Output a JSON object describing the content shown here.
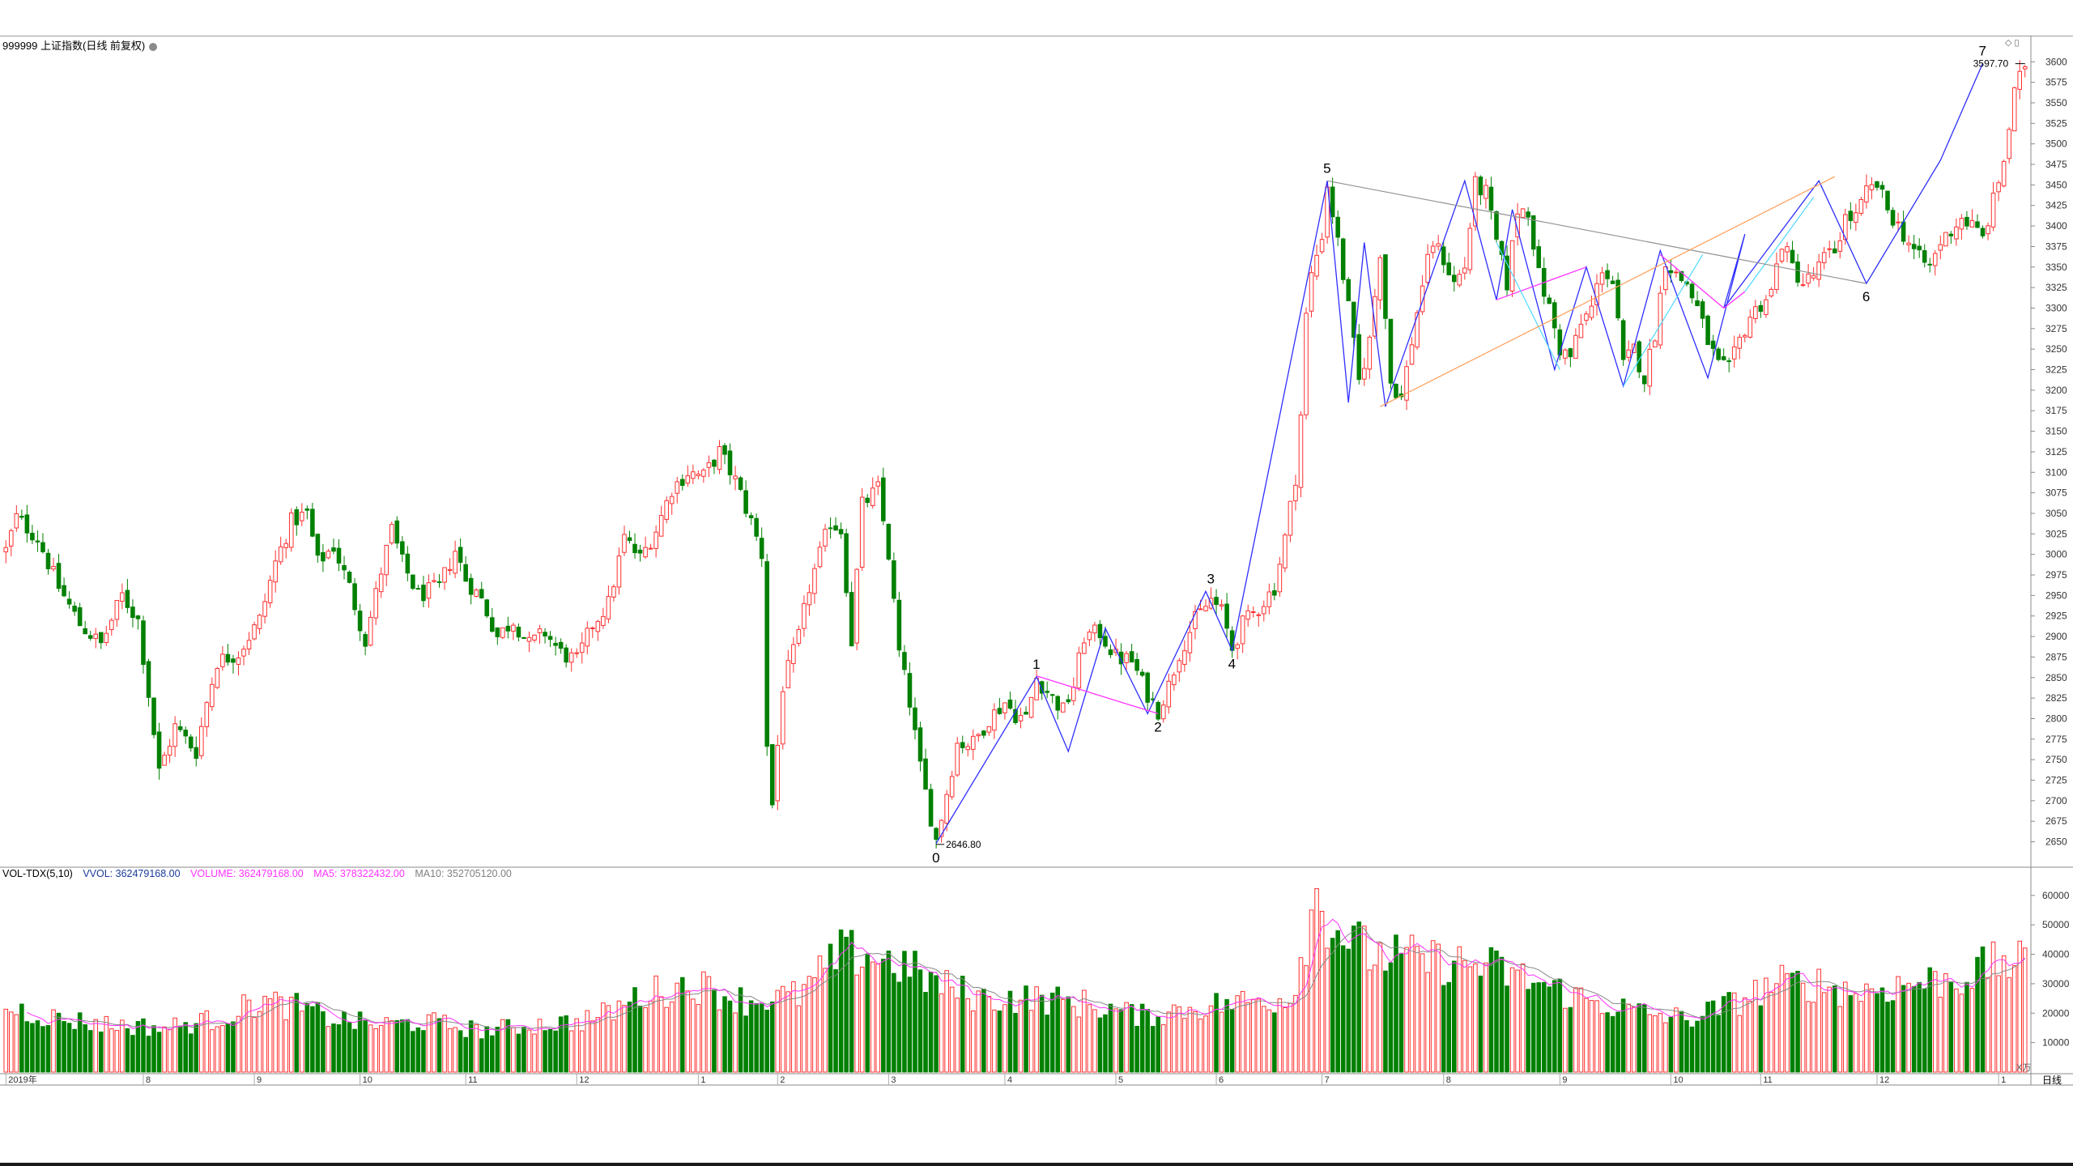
{
  "main_title": "999999 上证指数(日线 前复权)",
  "volume_indicator": {
    "name": "VOL-TDX(5,10)",
    "vvol": "VVOL: 362479168.00",
    "volume": "VOLUME: 362479168.00",
    "ma5": "MA5: 378322432.00",
    "ma10": "MA10: 352705120.00"
  },
  "period_label": "日线",
  "volume_unit": "X万",
  "colors": {
    "up": "#ff3030",
    "down": "#008000",
    "zigzag": "#2e2eff",
    "magenta": "#ff33ff",
    "cyan": "#4fd8ff",
    "orange": "#ff9f5a",
    "gray_line": "#909090",
    "ma5": "#ff33ff",
    "ma10": "#888888"
  },
  "chart_data": [
    {
      "type": "candlestick",
      "title": "999999 上证指数(日线 前复权)",
      "ylim": [
        2620,
        3620
      ],
      "y_ticks": [
        2650,
        2675,
        2700,
        2725,
        2750,
        2775,
        2800,
        2825,
        2850,
        2875,
        2900,
        2925,
        2950,
        2975,
        3000,
        3025,
        3050,
        3075,
        3100,
        3125,
        3150,
        3175,
        3200,
        3225,
        3250,
        3275,
        3300,
        3325,
        3350,
        3375,
        3400,
        3425,
        3450,
        3475,
        3500,
        3525,
        3550,
        3575,
        3600
      ],
      "x_ticks": [
        "2019年",
        "8",
        "9",
        "10",
        "11",
        "12",
        "1",
        "2",
        "3",
        "4",
        "5",
        "6",
        "7",
        "8",
        "9",
        "10",
        "11",
        "12",
        "1"
      ],
      "x_tick_index": [
        0,
        26,
        47,
        67,
        87,
        108,
        131,
        146,
        167,
        189,
        210,
        229,
        249,
        272,
        294,
        315,
        332,
        354,
        377
      ],
      "n_bars": 383,
      "price_path": [
        [
          0,
          3005
        ],
        [
          2,
          3045
        ],
        [
          6,
          3020
        ],
        [
          10,
          2960
        ],
        [
          14,
          2915
        ],
        [
          18,
          2890
        ],
        [
          22,
          2950
        ],
        [
          25,
          2920
        ],
        [
          27,
          2830
        ],
        [
          29,
          2735
        ],
        [
          32,
          2790
        ],
        [
          36,
          2760
        ],
        [
          38,
          2820
        ],
        [
          40,
          2870
        ],
        [
          44,
          2880
        ],
        [
          48,
          2920
        ],
        [
          51,
          2990
        ],
        [
          54,
          3040
        ],
        [
          57,
          3050
        ],
        [
          59,
          2990
        ],
        [
          62,
          3010
        ],
        [
          65,
          2960
        ],
        [
          68,
          2895
        ],
        [
          71,
          2980
        ],
        [
          73,
          3030
        ],
        [
          75,
          2990
        ],
        [
          78,
          2950
        ],
        [
          82,
          2960
        ],
        [
          85,
          3005
        ],
        [
          87,
          2970
        ],
        [
          90,
          2945
        ],
        [
          93,
          2900
        ],
        [
          96,
          2920
        ],
        [
          99,
          2890
        ],
        [
          102,
          2905
        ],
        [
          105,
          2880
        ],
        [
          108,
          2870
        ],
        [
          111,
          2915
        ],
        [
          114,
          2940
        ],
        [
          117,
          3020
        ],
        [
          120,
          2995
        ],
        [
          123,
          3030
        ],
        [
          126,
          3080
        ],
        [
          129,
          3100
        ],
        [
          132,
          3095
        ],
        [
          135,
          3125
        ],
        [
          138,
          3090
        ],
        [
          141,
          3040
        ],
        [
          143,
          3000
        ],
        [
          144,
          2770
        ],
        [
          145,
          2695
        ],
        [
          147,
          2840
        ],
        [
          150,
          2900
        ],
        [
          152,
          2960
        ],
        [
          154,
          3000
        ],
        [
          156,
          3040
        ],
        [
          158,
          3030
        ],
        [
          160,
          2895
        ],
        [
          162,
          3060
        ],
        [
          165,
          3080
        ],
        [
          167,
          3000
        ],
        [
          169,
          2880
        ],
        [
          171,
          2820
        ],
        [
          173,
          2740
        ],
        [
          175,
          2680
        ],
        [
          176,
          2652
        ],
        [
          178,
          2710
        ],
        [
          180,
          2770
        ],
        [
          183,
          2770
        ],
        [
          186,
          2800
        ],
        [
          189,
          2820
        ],
        [
          191,
          2805
        ],
        [
          193,
          2800
        ],
        [
          195,
          2850
        ],
        [
          198,
          2825
        ],
        [
          200,
          2810
        ],
        [
          202,
          2840
        ],
        [
          204,
          2900
        ],
        [
          207,
          2905
        ],
        [
          210,
          2875
        ],
        [
          213,
          2870
        ],
        [
          216,
          2830
        ],
        [
          218,
          2810
        ],
        [
          220,
          2840
        ],
        [
          222,
          2880
        ],
        [
          225,
          2920
        ],
        [
          228,
          2945
        ],
        [
          230,
          2930
        ],
        [
          232,
          2885
        ],
        [
          234,
          2915
        ],
        [
          237,
          2935
        ],
        [
          240,
          2960
        ],
        [
          242,
          3020
        ],
        [
          244,
          3095
        ],
        [
          245,
          3170
        ],
        [
          246,
          3290
        ],
        [
          247,
          3340
        ],
        [
          249,
          3390
        ],
        [
          250,
          3450
        ],
        [
          252,
          3380
        ],
        [
          254,
          3300
        ],
        [
          256,
          3210
        ],
        [
          258,
          3260
        ],
        [
          260,
          3370
        ],
        [
          262,
          3210
        ],
        [
          264,
          3190
        ],
        [
          266,
          3260
        ],
        [
          268,
          3330
        ],
        [
          270,
          3380
        ],
        [
          272,
          3360
        ],
        [
          274,
          3330
        ],
        [
          276,
          3350
        ],
        [
          278,
          3450
        ],
        [
          280,
          3440
        ],
        [
          282,
          3380
        ],
        [
          284,
          3330
        ],
        [
          286,
          3420
        ],
        [
          288,
          3420
        ],
        [
          290,
          3340
        ],
        [
          292,
          3300
        ],
        [
          294,
          3250
        ],
        [
          296,
          3240
        ],
        [
          298,
          3280
        ],
        [
          300,
          3300
        ],
        [
          302,
          3350
        ],
        [
          304,
          3330
        ],
        [
          306,
          3230
        ],
        [
          308,
          3250
        ],
        [
          310,
          3215
        ],
        [
          312,
          3270
        ],
        [
          314,
          3360
        ],
        [
          316,
          3340
        ],
        [
          318,
          3330
        ],
        [
          320,
          3300
        ],
        [
          322,
          3260
        ],
        [
          324,
          3230
        ],
        [
          326,
          3225
        ],
        [
          328,
          3260
        ],
        [
          330,
          3290
        ],
        [
          332,
          3305
        ],
        [
          334,
          3320
        ],
        [
          336,
          3380
        ],
        [
          338,
          3350
        ],
        [
          340,
          3330
        ],
        [
          342,
          3340
        ],
        [
          344,
          3360
        ],
        [
          346,
          3370
        ],
        [
          348,
          3410
        ],
        [
          350,
          3410
        ],
        [
          352,
          3440
        ],
        [
          354,
          3450
        ],
        [
          356,
          3420
        ],
        [
          358,
          3400
        ],
        [
          360,
          3380
        ],
        [
          362,
          3360
        ],
        [
          364,
          3350
        ],
        [
          366,
          3380
        ],
        [
          368,
          3395
        ],
        [
          370,
          3410
        ],
        [
          372,
          3400
        ],
        [
          374,
          3385
        ],
        [
          376,
          3430
        ],
        [
          378,
          3480
        ],
        [
          380,
          3560
        ],
        [
          382,
          3598
        ]
      ],
      "annotations": [
        {
          "text": "2646.80",
          "x": 176,
          "y": 2646.8
        },
        {
          "text": "3597.70",
          "x": 382,
          "y": 3597.7
        }
      ],
      "wave_points": [
        {
          "label": "0",
          "x": 176,
          "y": 2646.8
        },
        {
          "label": "1",
          "x": 195,
          "y": 2851
        },
        {
          "label": "2",
          "x": 218,
          "y": 2806
        },
        {
          "label": "3",
          "x": 228,
          "y": 2955
        },
        {
          "label": "4",
          "x": 232,
          "y": 2883
        },
        {
          "label": "5",
          "x": 250,
          "y": 3455
        },
        {
          "label": "6",
          "x": 352,
          "y": 3330
        },
        {
          "label": "7",
          "x": 374,
          "y": 3598
        }
      ],
      "zigzag_blue": [
        [
          176,
          2648
        ],
        [
          195,
          2851
        ],
        [
          201,
          2760
        ],
        [
          208,
          2910
        ],
        [
          216,
          2806
        ],
        [
          227,
          2955
        ],
        [
          232,
          2883
        ],
        [
          250,
          3455
        ],
        [
          254,
          3185
        ],
        [
          257,
          3380
        ],
        [
          261,
          3180
        ],
        [
          276,
          3455
        ],
        [
          282,
          3310
        ],
        [
          285,
          3420
        ],
        [
          293,
          3225
        ],
        [
          299,
          3350
        ],
        [
          306,
          3205
        ],
        [
          313,
          3370
        ],
        [
          322,
          3215
        ],
        [
          329,
          3390
        ],
        [
          325,
          3300
        ],
        [
          343,
          3455
        ],
        [
          352,
          3330
        ],
        [
          366,
          3480
        ],
        [
          374,
          3598
        ]
      ],
      "magenta_lines": [
        [
          [
            195,
            2852
          ],
          [
            218,
            2806
          ]
        ],
        [
          [
            282,
            3310
          ],
          [
            299,
            3350
          ]
        ],
        [
          [
            313,
            3365
          ],
          [
            325,
            3300
          ]
        ],
        [
          [
            325,
            3300
          ],
          [
            329,
            3320
          ]
        ]
      ],
      "gray_line": [
        [
          250,
          3455
        ],
        [
          352,
          3330
        ]
      ],
      "orange_line": [
        [
          260,
          3180
        ],
        [
          346,
          3460
        ]
      ],
      "cyan_lines": [
        [
          [
            282,
            3380
          ],
          [
            294,
            3225
          ]
        ],
        [
          [
            306,
            3205
          ],
          [
            321,
            3365
          ]
        ],
        [
          [
            329,
            3320
          ],
          [
            342,
            3435
          ]
        ]
      ]
    },
    {
      "type": "bar",
      "title": "VOL-TDX(5,10)",
      "ylabel": "X万",
      "ylim": [
        0,
        66000
      ],
      "y_ticks": [
        10000,
        20000,
        30000,
        40000,
        50000,
        60000
      ],
      "volume_path": [
        [
          0,
          22000
        ],
        [
          10,
          18000
        ],
        [
          20,
          16000
        ],
        [
          30,
          15000
        ],
        [
          40,
          18000
        ],
        [
          48,
          24000
        ],
        [
          55,
          22000
        ],
        [
          62,
          18000
        ],
        [
          70,
          16000
        ],
        [
          80,
          17000
        ],
        [
          90,
          14000
        ],
        [
          100,
          16000
        ],
        [
          108,
          17000
        ],
        [
          114,
          20000
        ],
        [
          120,
          26000
        ],
        [
          130,
          30000
        ],
        [
          140,
          24000
        ],
        [
          150,
          26000
        ],
        [
          158,
          40000
        ],
        [
          163,
          40000
        ],
        [
          170,
          36000
        ],
        [
          176,
          30000
        ],
        [
          185,
          25000
        ],
        [
          195,
          25000
        ],
        [
          205,
          23000
        ],
        [
          215,
          19000
        ],
        [
          225,
          22000
        ],
        [
          235,
          24000
        ],
        [
          243,
          25000
        ],
        [
          248,
          60000
        ],
        [
          251,
          50000
        ],
        [
          258,
          40000
        ],
        [
          268,
          38000
        ],
        [
          280,
          36000
        ],
        [
          290,
          30000
        ],
        [
          300,
          24000
        ],
        [
          310,
          20000
        ],
        [
          318,
          18000
        ],
        [
          325,
          22000
        ],
        [
          335,
          30000
        ],
        [
          343,
          30000
        ],
        [
          350,
          27000
        ],
        [
          360,
          30000
        ],
        [
          370,
          32000
        ],
        [
          378,
          38000
        ],
        [
          382,
          36000
        ]
      ]
    }
  ]
}
